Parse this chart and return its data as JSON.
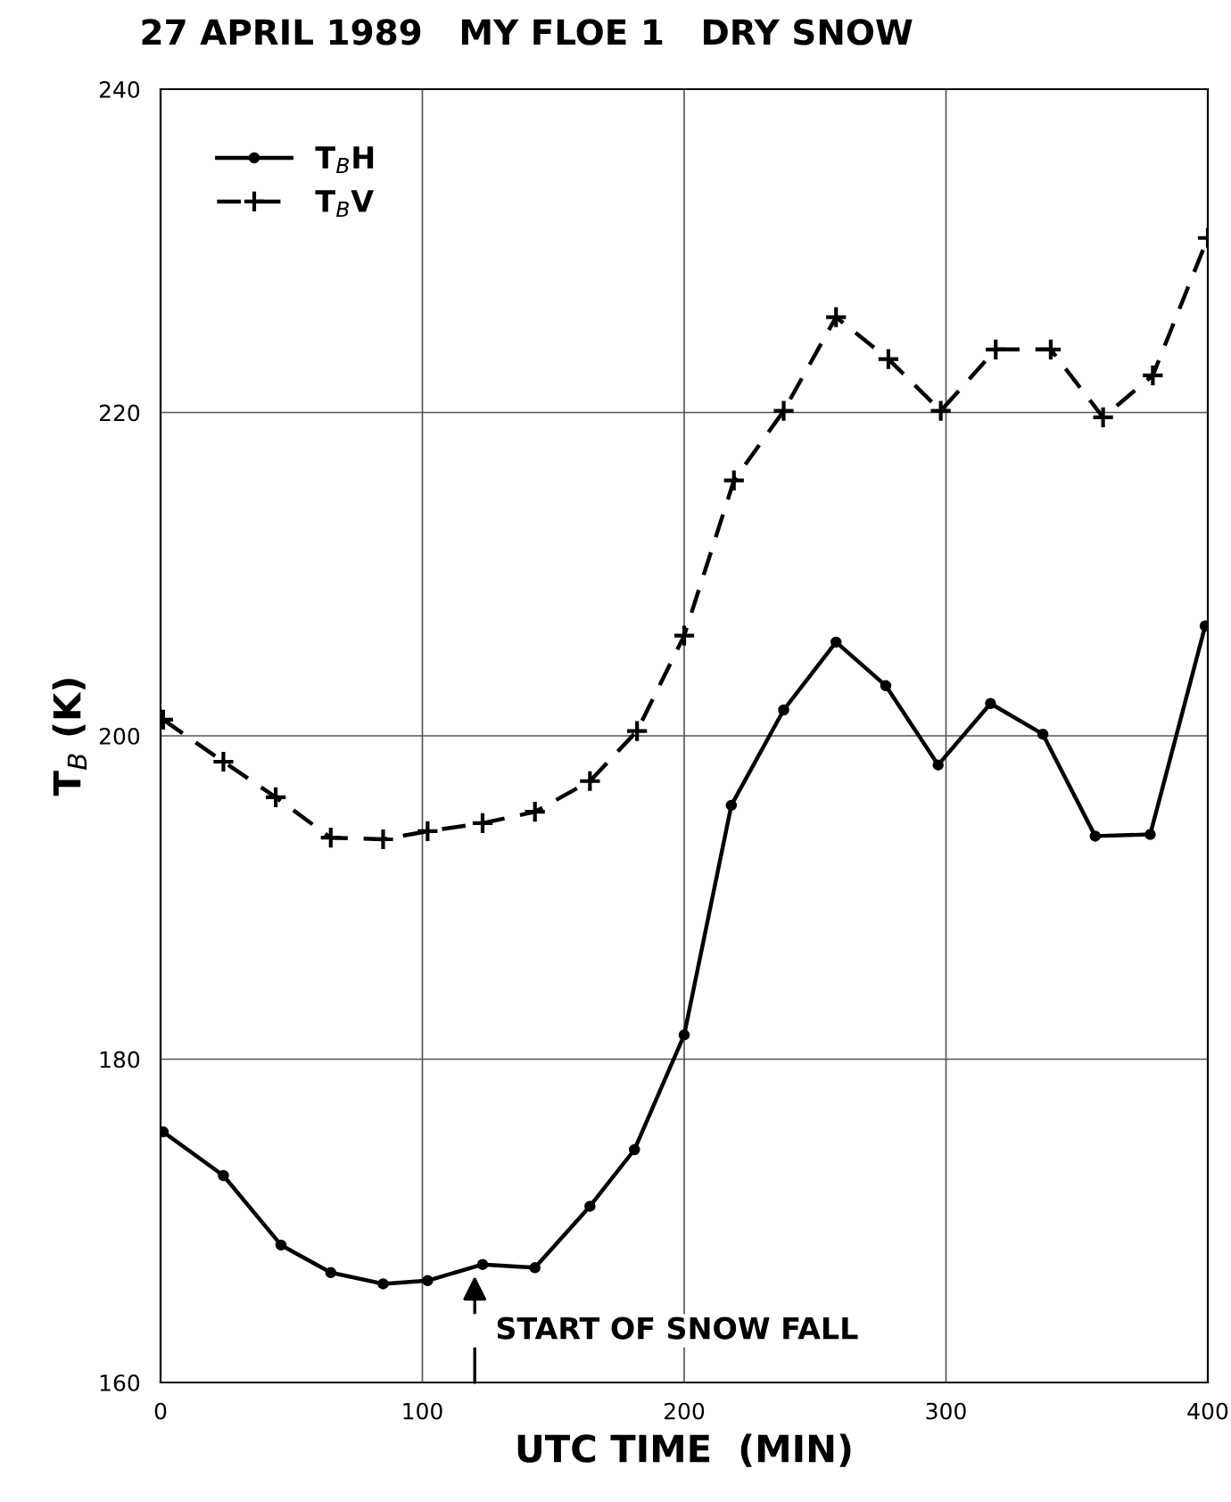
{
  "chart_data": {
    "type": "line",
    "title": "27 APRIL 1989   MY FLOE 1   DRY SNOW",
    "xlabel": "UTC TIME  (MIN)",
    "ylabel": "T$_{B}$ (K)",
    "xlim": [
      0,
      400
    ],
    "xticks": [
      0,
      100,
      200,
      300,
      400
    ],
    "ylim": [
      160,
      240
    ],
    "yticks": [
      160,
      180,
      200,
      220,
      240
    ],
    "grid": true,
    "legend": "top left",
    "series": [
      {
        "name": "T$_{B}$H",
        "color": "#000000",
        "marker": "circle",
        "line_style": "solid",
        "x": [
          1,
          24,
          46,
          65,
          85,
          102,
          123,
          143,
          164,
          181,
          200,
          218,
          238,
          258,
          277,
          297,
          317,
          337,
          357,
          378,
          399
        ],
        "values": [
          175.5,
          172.8,
          168.5,
          166.8,
          166.1,
          166.3,
          167.3,
          167.1,
          170.9,
          174.4,
          181.5,
          195.7,
          201.6,
          205.8,
          203.1,
          198.2,
          202,
          200.1,
          193.8,
          193.9,
          206.8
        ]
      },
      {
        "name": "T$_{B}$V",
        "color": "#000000",
        "marker": "cross",
        "line_style": "dashed",
        "x": [
          1,
          24,
          44,
          65,
          85,
          102,
          123,
          143,
          164,
          182,
          200,
          219,
          238,
          258,
          278,
          298,
          319,
          340,
          360,
          379,
          400
        ],
        "values": [
          201,
          198.4,
          196.2,
          193.7,
          193.6,
          194.1,
          194.6,
          195.3,
          197.2,
          200.3,
          206.2,
          215.8,
          220.1,
          225.9,
          223.3,
          220.1,
          223.9,
          223.9,
          219.7,
          222.3,
          230.8
        ]
      }
    ],
    "annotations": [
      {
        "text": "START OF SNOW FALL",
        "x": 120,
        "y": 167.2
      }
    ]
  }
}
